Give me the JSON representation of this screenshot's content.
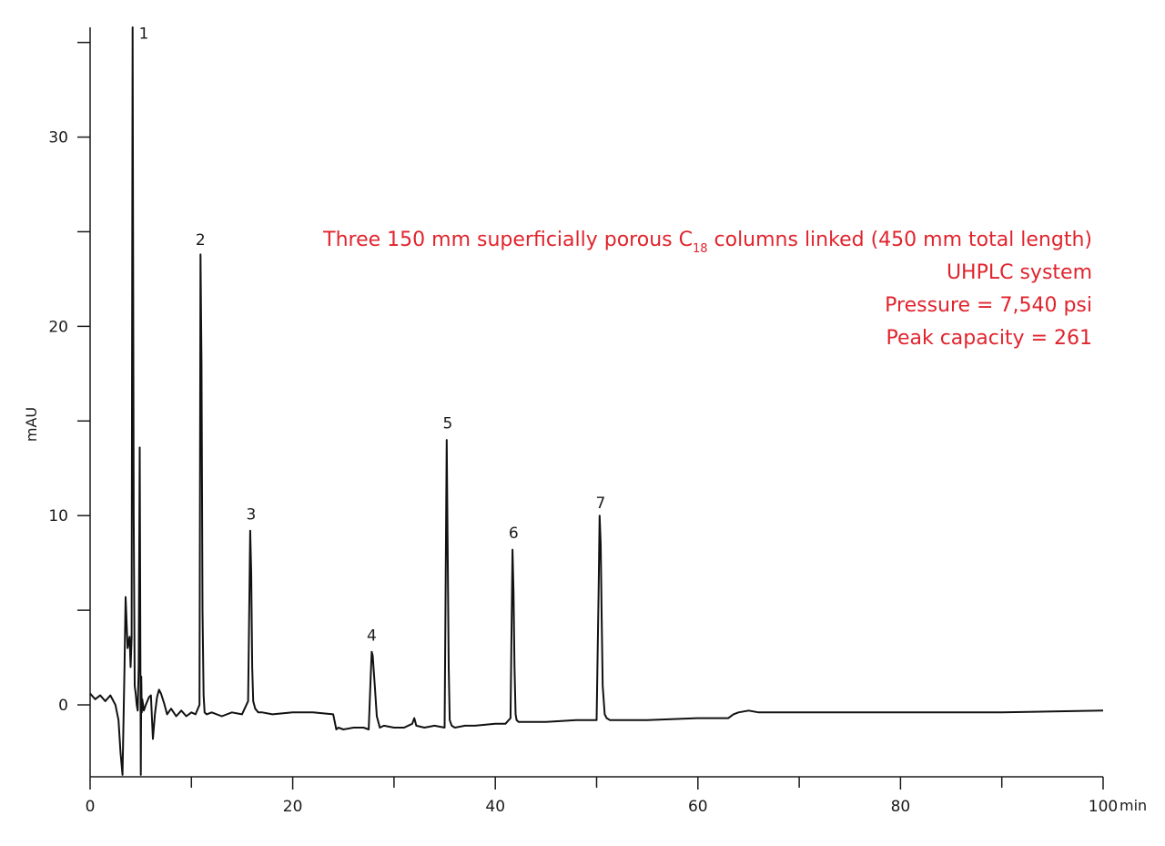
{
  "chart_data": {
    "type": "line",
    "xlabel": "min",
    "ylabel": "mAU",
    "xlim": [
      0,
      100
    ],
    "ylim": [
      -3.8,
      35.8
    ],
    "x_ticks": [
      0,
      20,
      40,
      60,
      80,
      100
    ],
    "x_tick_labels": [
      "0",
      "20",
      "40",
      "60",
      "80",
      "100"
    ],
    "x_minor_ticks": [
      10,
      30,
      50,
      70,
      90
    ],
    "y_ticks": [
      0,
      10,
      20,
      30
    ],
    "y_tick_labels": [
      "0",
      "10",
      "20",
      "30"
    ],
    "y_minor_ticks": [
      5,
      15,
      25,
      35
    ],
    "grid": false,
    "line_color": "#111111",
    "annotation_color": "#e0242d",
    "series": [
      {
        "x": [
          0.0,
          0.5,
          1.0,
          1.5,
          2.0,
          2.5,
          2.8,
          3.0,
          3.2,
          3.4,
          3.5,
          3.7,
          3.9,
          4.0,
          4.1,
          4.2,
          4.3,
          4.4,
          4.5,
          4.6,
          4.7,
          4.8,
          4.9,
          5.0,
          5.05,
          5.1,
          5.15,
          5.2,
          5.3,
          5.5,
          5.8,
          6.0,
          6.2,
          6.4,
          6.6,
          6.8,
          7.0,
          7.3,
          7.6,
          8.0,
          8.5,
          9.0,
          9.5,
          10.0,
          10.4,
          10.8,
          10.9,
          11.0,
          11.1,
          11.2,
          11.3,
          11.5,
          12.0,
          13.0,
          14.0,
          15.0,
          15.6,
          15.8,
          15.9,
          16.0,
          16.1,
          16.3,
          16.6,
          17.0,
          18.0,
          20.0,
          22.0,
          24.0,
          24.3,
          24.5,
          25.0,
          26.0,
          27.0,
          27.5,
          27.7,
          27.8,
          27.9,
          28.1,
          28.3,
          28.6,
          29.0,
          30.0,
          31.0,
          31.8,
          32.0,
          32.2,
          33.0,
          34.0,
          35.0,
          35.2,
          35.3,
          35.4,
          35.5,
          35.7,
          36.0,
          37.0,
          38.0,
          40.0,
          41.0,
          41.5,
          41.7,
          41.8,
          41.9,
          42.0,
          42.1,
          42.3,
          42.6,
          43.0,
          45.0,
          48.0,
          50.0,
          50.2,
          50.3,
          50.4,
          50.5,
          50.6,
          50.8,
          51.0,
          51.3,
          51.6,
          52.0,
          55.0,
          60.0,
          63.0,
          63.5,
          64.0,
          65.0,
          66.0,
          70.0,
          80.0,
          90.0,
          95.0,
          100.0
        ],
        "y": [
          0.6,
          0.3,
          0.5,
          0.2,
          0.5,
          0.0,
          -0.8,
          -2.5,
          -3.7,
          2.0,
          5.7,
          3.0,
          3.6,
          2.0,
          3.5,
          35.8,
          10.0,
          1.0,
          0.6,
          0.0,
          -0.3,
          2.0,
          13.6,
          -3.7,
          1.5,
          -0.4,
          0.3,
          0.1,
          -0.3,
          0.0,
          0.4,
          0.5,
          -1.8,
          -0.5,
          0.4,
          0.8,
          0.6,
          0.1,
          -0.5,
          -0.2,
          -0.6,
          -0.3,
          -0.6,
          -0.4,
          -0.5,
          0.0,
          23.8,
          18.0,
          5.0,
          0.5,
          -0.4,
          -0.5,
          -0.4,
          -0.6,
          -0.4,
          -0.5,
          0.2,
          9.2,
          7.0,
          2.0,
          0.2,
          -0.2,
          -0.4,
          -0.4,
          -0.5,
          -0.4,
          -0.4,
          -0.5,
          -1.3,
          -1.2,
          -1.3,
          -1.2,
          -1.2,
          -1.3,
          1.5,
          2.8,
          2.6,
          1.0,
          -0.6,
          -1.2,
          -1.1,
          -1.2,
          -1.2,
          -1.0,
          -0.7,
          -1.1,
          -1.2,
          -1.1,
          -1.2,
          14.0,
          8.0,
          2.0,
          -0.8,
          -1.1,
          -1.2,
          -1.1,
          -1.1,
          -1.0,
          -1.0,
          -0.7,
          8.2,
          6.0,
          2.0,
          -0.5,
          -0.8,
          -0.9,
          -0.9,
          -0.9,
          -0.9,
          -0.8,
          -0.8,
          6.0,
          10.0,
          8.5,
          4.5,
          1.0,
          -0.5,
          -0.7,
          -0.8,
          -0.8,
          -0.8,
          -0.8,
          -0.7,
          -0.7,
          -0.5,
          -0.4,
          -0.3,
          -0.4,
          -0.4,
          -0.4,
          -0.4,
          -0.35,
          -0.3
        ]
      }
    ],
    "peak_labels": [
      {
        "label": "1",
        "x": 5.3,
        "y": 35.2
      },
      {
        "label": "2",
        "x": 10.9,
        "y": 24.3
      },
      {
        "label": "3",
        "x": 15.9,
        "y": 9.8
      },
      {
        "label": "4",
        "x": 27.8,
        "y": 3.4
      },
      {
        "label": "5",
        "x": 35.3,
        "y": 14.6
      },
      {
        "label": "6",
        "x": 41.8,
        "y": 8.8
      },
      {
        "label": "7",
        "x": 50.4,
        "y": 10.4
      }
    ],
    "annotation": {
      "line1_pre": "Three 150 mm superficially porous C",
      "line1_sub": "18",
      "line1_post": " columns linked (450 mm total length)",
      "line2": "UHPLC system",
      "line3": "Pressure = 7,540 psi",
      "line4": "Peak capacity = 261"
    }
  }
}
